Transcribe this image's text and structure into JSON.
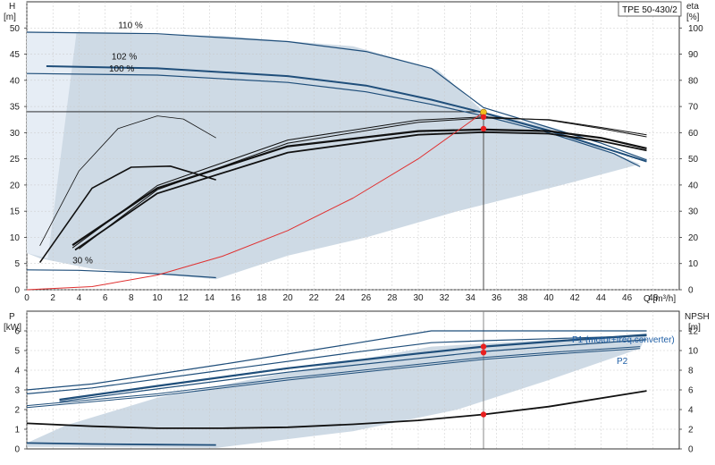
{
  "chart_data": [
    {
      "type": "line",
      "title": "TPE 50-430/2",
      "ylabel_left": "H",
      "ylabel_left_unit": "[m]",
      "ylabel_right": "eta",
      "ylabel_right_unit": "[%]",
      "xlabel": "Q [m³/h]",
      "xlim": [
        0,
        50
      ],
      "ylim": [
        0,
        55
      ],
      "ylim_right": [
        0,
        110
      ],
      "x_ticks": [
        0,
        2,
        4,
        6,
        8,
        10,
        12,
        14,
        16,
        18,
        20,
        22,
        24,
        26,
        28,
        30,
        32,
        34,
        36,
        38,
        40,
        42,
        44,
        46,
        48
      ],
      "y_ticks": [
        0,
        5,
        10,
        15,
        20,
        25,
        30,
        35,
        40,
        45,
        50
      ],
      "y_ticks_right": [
        0,
        10,
        20,
        30,
        40,
        50,
        60,
        70,
        80,
        90,
        100
      ],
      "grid": true,
      "annotations": [
        {
          "text": "110 %",
          "x": 7,
          "y": 50
        },
        {
          "text": "102 %",
          "x": 6.5,
          "y": 44
        },
        {
          "text": "100 %",
          "x": 6.3,
          "y": 41.7
        },
        {
          "text": "30 %",
          "x": 3.5,
          "y": 5
        }
      ],
      "duty_point": {
        "Q": 35,
        "H": 33.9,
        "eta": 61.5
      },
      "reference_line_H": 34,
      "operating_region": [
        [
          0,
          0
        ],
        [
          0,
          49.2
        ],
        [
          5,
          49
        ],
        [
          15,
          48.5
        ],
        [
          25,
          46.5
        ],
        [
          31.5,
          42
        ],
        [
          35,
          34
        ],
        [
          40,
          31
        ],
        [
          47,
          24
        ],
        [
          41,
          20
        ],
        [
          33,
          15
        ],
        [
          26,
          10
        ],
        [
          20,
          6.5
        ],
        [
          14.5,
          2
        ],
        [
          5,
          4
        ],
        [
          1,
          6
        ],
        [
          0,
          7
        ]
      ],
      "series": [
        {
          "label": "110 %",
          "x": [
            0,
            10,
            20,
            26,
            31,
            35,
            40,
            44,
            47.5
          ],
          "y": [
            49.2,
            48.9,
            47.4,
            45.5,
            42.3,
            34.8,
            31,
            28,
            24.8
          ]
        },
        {
          "label": "102 %",
          "x": [
            1.5,
            10,
            20,
            26,
            31,
            35,
            40,
            45,
            47.5
          ],
          "y": [
            42.7,
            42.3,
            40.8,
            39,
            36.3,
            33.8,
            30.4,
            26.5,
            24.5
          ]
        },
        {
          "label": "100 %",
          "x": [
            0,
            10,
            20,
            26,
            31,
            35,
            40,
            45,
            47
          ],
          "y": [
            41.3,
            41,
            39.6,
            37.8,
            35.4,
            33.2,
            30,
            26,
            23.5
          ]
        },
        {
          "label": "30 %",
          "x": [
            0,
            4,
            8,
            11,
            14.5
          ],
          "y": [
            3.8,
            3.7,
            3.3,
            2.9,
            2.3
          ]
        },
        {
          "label": "",
          "x": [
            3.5,
            10,
            20,
            30,
            35,
            40,
            44,
            47.5
          ],
          "y": [
            8.5,
            19.4,
            27.4,
            30.3,
            30.6,
            30.3,
            29,
            27
          ]
        },
        {
          "label": "",
          "x": [
            3.7,
            10,
            20,
            30,
            35,
            40,
            44,
            47.5
          ],
          "y": [
            7.6,
            18.4,
            26.2,
            29.6,
            30.1,
            29.8,
            28.4,
            26.6
          ]
        },
        {
          "label": "",
          "x": [
            3.5,
            10,
            20,
            30,
            35,
            40,
            44,
            47.5
          ],
          "y": [
            8,
            19.9,
            28.6,
            32.4,
            33,
            32.4,
            30.8,
            29.2
          ]
        },
        {
          "label": "",
          "x": [
            4,
            10,
            20,
            30,
            35,
            40,
            44,
            47.5
          ],
          "y": [
            7.8,
            19.1,
            28,
            32,
            32.8,
            32.5,
            31,
            29.6
          ]
        },
        {
          "label": "",
          "x": [
            1,
            5,
            8,
            11,
            14.5
          ],
          "y": [
            5.2,
            19.4,
            23.4,
            23.6,
            21
          ]
        },
        {
          "label": "",
          "x": [
            1,
            4,
            7,
            10,
            12,
            14.5
          ],
          "y": [
            8.4,
            22.7,
            30.8,
            33.2,
            32.6,
            29
          ]
        },
        {
          "label": "",
          "x": [
            0,
            5,
            10,
            15,
            20,
            25,
            30,
            35
          ],
          "y": [
            0,
            0.6,
            2.8,
            6.4,
            11.3,
            17.5,
            25,
            33.9
          ]
        }
      ]
    },
    {
      "type": "line",
      "ylabel_left": "P",
      "ylabel_left_unit": "[kW]",
      "ylabel_right": "NPSH",
      "ylabel_right_unit": "[m]",
      "xlim": [
        0,
        50
      ],
      "ylim": [
        0,
        7
      ],
      "ylim_right": [
        0,
        14
      ],
      "y_ticks": [
        0,
        1,
        2,
        3,
        4,
        5,
        6
      ],
      "y_ticks_right": [
        0,
        2,
        4,
        6,
        8,
        10,
        12
      ],
      "grid": true,
      "legend": [
        "P1 (motor+freq.converter)",
        "P2"
      ],
      "duty_points": [
        {
          "Q": 35,
          "P1": 5.2
        },
        {
          "Q": 35,
          "P2": 4.9
        },
        {
          "Q": 35,
          "NPSH": 3.5
        }
      ],
      "operating_region": [
        [
          0,
          0.3
        ],
        [
          3,
          1.2
        ],
        [
          10,
          2.6
        ],
        [
          20,
          3.9
        ],
        [
          31,
          5.2
        ],
        [
          35,
          5.35
        ],
        [
          40,
          5.55
        ],
        [
          47.5,
          5.8
        ],
        [
          47,
          5.1
        ],
        [
          40,
          3.5
        ],
        [
          33,
          2
        ],
        [
          25,
          0.9
        ],
        [
          14.5,
          0.05
        ],
        [
          3,
          0.1
        ],
        [
          0,
          0.1
        ]
      ],
      "series": [
        {
          "label": "P1 (motor+freq.converter)",
          "x": [
            0,
            5,
            15,
            25,
            31,
            35,
            40,
            47.5
          ],
          "y": [
            3,
            3.3,
            4.3,
            5.35,
            6,
            6,
            6,
            6
          ]
        },
        {
          "label": "P2",
          "x": [
            0,
            5,
            15,
            25,
            31,
            35,
            40,
            47.5
          ],
          "y": [
            2.8,
            3.1,
            4.0,
            4.9,
            5.4,
            5.5,
            5.6,
            5.75
          ]
        },
        {
          "label": "",
          "x": [
            2.5,
            10,
            20,
            30,
            35,
            40,
            47.5
          ],
          "y": [
            2.5,
            3.2,
            4.1,
            4.85,
            5.2,
            5.45,
            5.8
          ]
        },
        {
          "label": "",
          "x": [
            2.5,
            10,
            20,
            30,
            35,
            40,
            47.5
          ],
          "y": [
            2.4,
            3.05,
            3.9,
            4.6,
            4.95,
            5.2,
            5.55
          ]
        },
        {
          "label": "",
          "x": [
            0,
            10,
            20,
            30,
            35,
            40,
            47
          ],
          "y": [
            2.2,
            2.8,
            3.6,
            4.3,
            4.65,
            4.9,
            5.2
          ]
        },
        {
          "label": "",
          "x": [
            0,
            10,
            20,
            30,
            35,
            40,
            47
          ],
          "y": [
            2.1,
            2.7,
            3.5,
            4.2,
            4.55,
            4.8,
            5.1
          ]
        },
        {
          "label": "",
          "x": [
            0,
            5,
            10,
            14.5
          ],
          "y": [
            0.3,
            0.25,
            0.22,
            0.2
          ]
        },
        {
          "label": "",
          "x": [
            0,
            5,
            10,
            15,
            20,
            25,
            30,
            35,
            40,
            47.5
          ],
          "y": [
            1.3,
            1.15,
            1.05,
            1.05,
            1.1,
            1.25,
            1.45,
            1.75,
            2.15,
            2.95
          ]
        }
      ]
    }
  ]
}
